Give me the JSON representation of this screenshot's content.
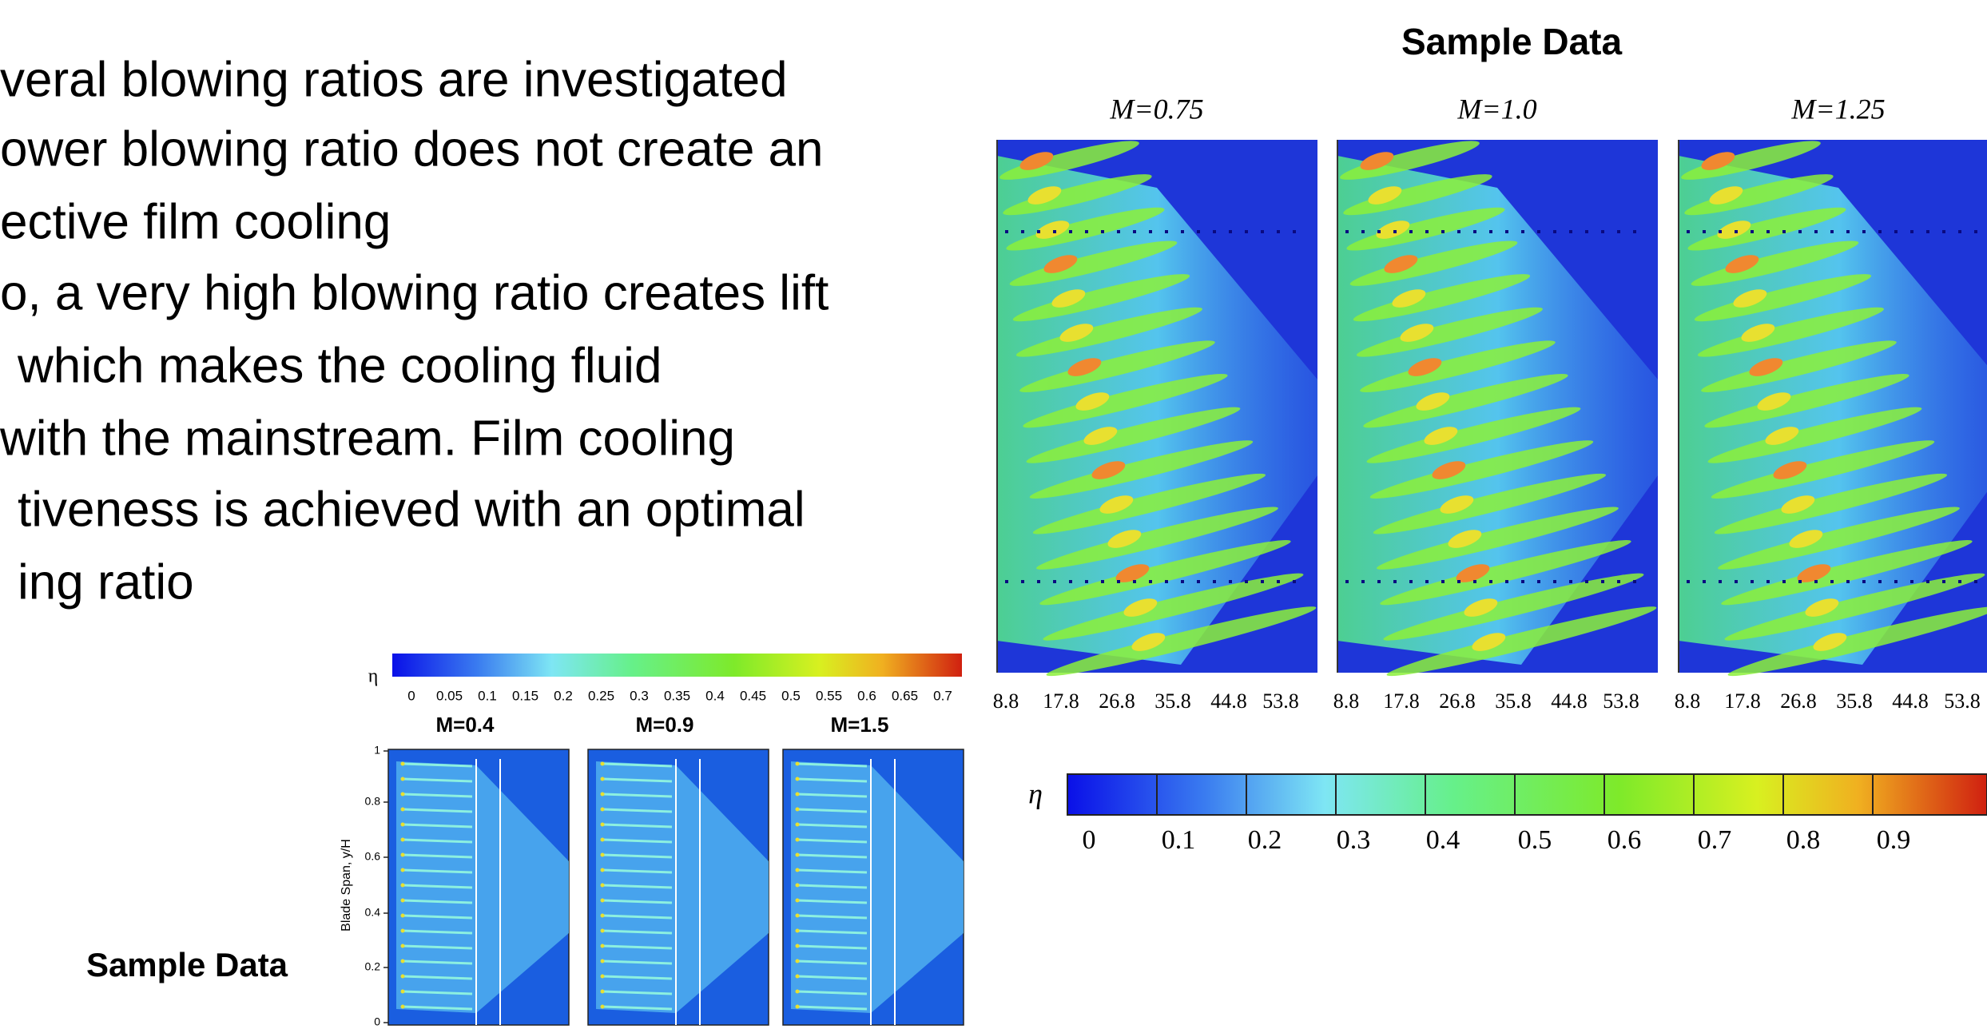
{
  "bullets": [
    "veral blowing ratios are investigated",
    "ower blowing ratio does not create an",
    "ective film cooling",
    "o, a very high blowing ratio creates lift",
    "which makes the cooling fluid",
    "with the mainstream. Film cooling",
    "tiveness is achieved with an optimal",
    "ing ratio"
  ],
  "right_figure": {
    "title": "Sample Data",
    "panels": [
      {
        "title": "M=0.75"
      },
      {
        "title": "M=1.0"
      },
      {
        "title": "M=1.25"
      }
    ],
    "x_ticks": [
      "8.8",
      "17.8",
      "26.8",
      "35.8",
      "44.8",
      "53.8"
    ],
    "colorbar": {
      "symbol": "η",
      "ticks": [
        "0",
        "0.1",
        "0.2",
        "0.3",
        "0.4",
        "0.5",
        "0.6",
        "0.7",
        "0.8",
        "0.9"
      ]
    }
  },
  "left_figure": {
    "caption": "Sample Data",
    "colorbar": {
      "symbol": "η",
      "ticks": [
        "0",
        "0.05",
        "0.1",
        "0.15",
        "0.2",
        "0.25",
        "0.3",
        "0.35",
        "0.4",
        "0.45",
        "0.5",
        "0.55",
        "0.6",
        "0.65",
        "0.7"
      ]
    },
    "panels": [
      {
        "title": "M=0.4"
      },
      {
        "title": "M=0.9"
      },
      {
        "title": "M=1.5"
      }
    ],
    "y_label": "Blade Span, y/H",
    "y_ticks": [
      "1",
      "0.8",
      "0.6",
      "0.4",
      "0.2",
      "0"
    ]
  }
}
